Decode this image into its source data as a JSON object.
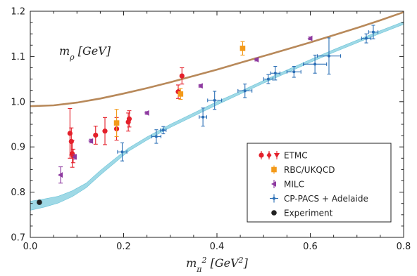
{
  "chart_data": {
    "type": "scatter",
    "panel_label": "m_ρ [GeV]",
    "xlabel": "m_π² [GeV²]",
    "ylabel": "",
    "xlim": [
      0.0,
      0.8
    ],
    "ylim": [
      0.7,
      1.2
    ],
    "x_ticks": [
      "0.0",
      "0.2",
      "0.4",
      "0.6",
      "0.8"
    ],
    "y_ticks": [
      "0.7",
      "0.8",
      "0.9",
      "1.0",
      "1.1",
      "1.2"
    ],
    "x_tick_values": [
      0.0,
      0.2,
      0.4,
      0.6,
      0.8
    ],
    "y_tick_values": [
      0.7,
      0.8,
      0.9,
      1.0,
      1.1,
      1.2
    ],
    "legend_position": "lower-right",
    "colors": {
      "etmc": "#e4202b",
      "rbc": "#f39a1a",
      "milc": "#8e3aa0",
      "cppacs": "#2a6eb5",
      "experiment": "#222222",
      "band": "#9fd9e6",
      "band_edge": "#6cc3d8",
      "curve": "#b8895a"
    },
    "series": [
      {
        "name": "ETMC",
        "marker": "circle",
        "points": [
          {
            "x": 0.085,
            "y": 0.93,
            "yerr": 0.055
          },
          {
            "x": 0.088,
            "y": 0.912,
            "yerr": 0.03
          },
          {
            "x": 0.09,
            "y": 0.885,
            "yerr": 0.03
          },
          {
            "x": 0.092,
            "y": 0.88,
            "yerr": 0.015
          },
          {
            "x": 0.14,
            "y": 0.926,
            "yerr": 0.02
          },
          {
            "x": 0.16,
            "y": 0.935,
            "yerr": 0.03
          },
          {
            "x": 0.185,
            "y": 0.94,
            "yerr": 0.025
          },
          {
            "x": 0.21,
            "y": 0.955,
            "yerr": 0.02
          },
          {
            "x": 0.212,
            "y": 0.962,
            "yerr": 0.018
          },
          {
            "x": 0.317,
            "y": 1.022,
            "yerr": 0.015
          },
          {
            "x": 0.325,
            "y": 1.057,
            "yerr": 0.018
          }
        ]
      },
      {
        "name": "RBC/UKQCD",
        "marker": "square",
        "points": [
          {
            "x": 0.185,
            "y": 0.953,
            "yerr": 0.03
          },
          {
            "x": 0.322,
            "y": 1.017,
            "yerr": 0.012
          },
          {
            "x": 0.455,
            "y": 1.118,
            "yerr": 0.015
          }
        ]
      },
      {
        "name": "MILC",
        "marker": "triangle-left",
        "points": [
          {
            "x": 0.065,
            "y": 0.838,
            "yerr": 0.018
          },
          {
            "x": 0.095,
            "y": 0.878,
            "yerr": 0.005
          },
          {
            "x": 0.13,
            "y": 0.913,
            "yerr": 0.004
          },
          {
            "x": 0.25,
            "y": 0.975,
            "yerr": 0.003
          },
          {
            "x": 0.365,
            "y": 1.035,
            "yerr": 0.003
          },
          {
            "x": 0.485,
            "y": 1.093,
            "yerr": 0.003
          },
          {
            "x": 0.6,
            "y": 1.14,
            "yerr": 0.003
          }
        ]
      },
      {
        "name": "CP-PACS + Adelaide",
        "marker": "cross",
        "points": [
          {
            "x": 0.197,
            "y": 0.889,
            "xerr": 0.01,
            "yerr": 0.02
          },
          {
            "x": 0.27,
            "y": 0.923,
            "xerr": 0.01,
            "yerr": 0.015
          },
          {
            "x": 0.285,
            "y": 0.937,
            "xerr": 0.006,
            "yerr": 0.008
          },
          {
            "x": 0.37,
            "y": 0.966,
            "xerr": 0.008,
            "yerr": 0.02
          },
          {
            "x": 0.395,
            "y": 1.003,
            "xerr": 0.015,
            "yerr": 0.02
          },
          {
            "x": 0.46,
            "y": 1.024,
            "xerr": 0.015,
            "yerr": 0.015
          },
          {
            "x": 0.51,
            "y": 1.05,
            "xerr": 0.01,
            "yerr": 0.01
          },
          {
            "x": 0.525,
            "y": 1.063,
            "xerr": 0.01,
            "yerr": 0.015
          },
          {
            "x": 0.565,
            "y": 1.066,
            "xerr": 0.015,
            "yerr": 0.012
          },
          {
            "x": 0.61,
            "y": 1.083,
            "xerr": 0.025,
            "yerr": 0.02
          },
          {
            "x": 0.64,
            "y": 1.101,
            "xerr": 0.025,
            "yerr": 0.04
          },
          {
            "x": 0.72,
            "y": 1.14,
            "xerr": 0.01,
            "yerr": 0.01
          },
          {
            "x": 0.735,
            "y": 1.154,
            "xerr": 0.01,
            "yerr": 0.015
          }
        ]
      },
      {
        "name": "Experiment",
        "marker": "dot",
        "points": [
          {
            "x": 0.0195,
            "y": 0.7775
          }
        ]
      }
    ],
    "curves": {
      "upper": {
        "x": [
          0.0,
          0.05,
          0.1,
          0.15,
          0.2,
          0.25,
          0.3,
          0.35,
          0.4,
          0.45,
          0.5,
          0.55,
          0.6,
          0.65,
          0.7,
          0.75,
          0.8
        ],
        "y": [
          0.99,
          0.992,
          0.998,
          1.007,
          1.018,
          1.03,
          1.043,
          1.057,
          1.071,
          1.086,
          1.101,
          1.116,
          1.131,
          1.147,
          1.163,
          1.18,
          1.198
        ]
      },
      "band": {
        "x": [
          0.0,
          0.03,
          0.06,
          0.09,
          0.12,
          0.15,
          0.18,
          0.21,
          0.25,
          0.3,
          0.35,
          0.4,
          0.45,
          0.5,
          0.55,
          0.6,
          0.65,
          0.7,
          0.75,
          0.8
        ],
        "y_low": [
          0.76,
          0.767,
          0.776,
          0.79,
          0.81,
          0.838,
          0.864,
          0.89,
          0.915,
          0.943,
          0.968,
          0.993,
          1.017,
          1.041,
          1.064,
          1.087,
          1.109,
          1.13,
          1.151,
          1.171
        ],
        "y_high": [
          0.78,
          0.785,
          0.791,
          0.803,
          0.82,
          0.848,
          0.873,
          0.897,
          0.922,
          0.95,
          0.975,
          1.0,
          1.023,
          1.047,
          1.07,
          1.093,
          1.115,
          1.136,
          1.157,
          1.177
        ]
      }
    }
  }
}
